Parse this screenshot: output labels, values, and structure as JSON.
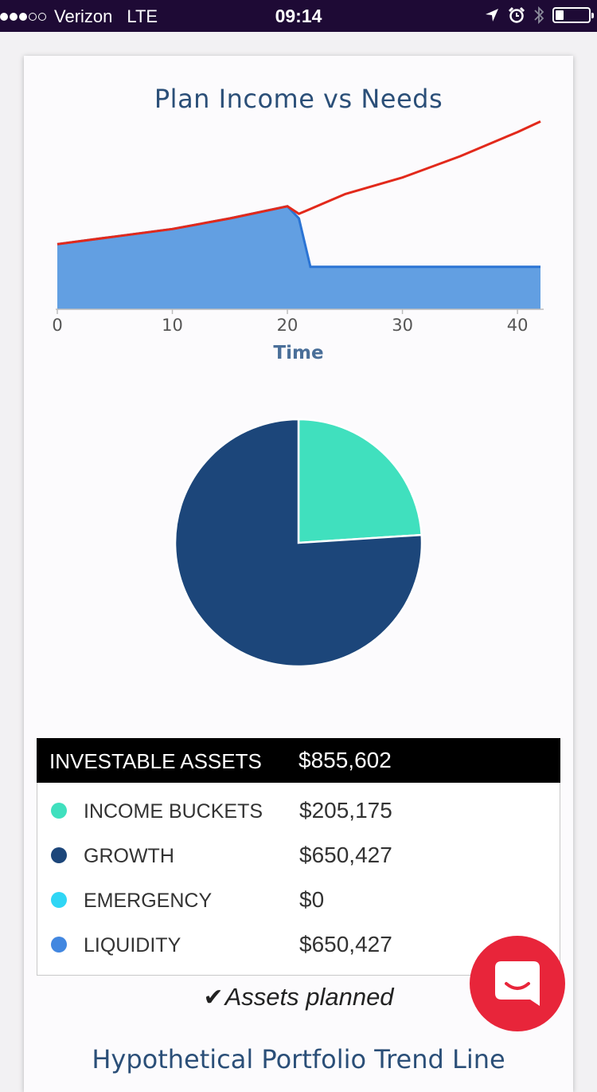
{
  "status_bar": {
    "carrier": "Verizon",
    "network": "LTE",
    "time": "09:14",
    "signal_bars_filled": 3,
    "signal_bars_total": 5,
    "battery_level": 0.25
  },
  "chart": {
    "title": "Plan Income vs Needs",
    "chart_data": {
      "type": "area",
      "xlabel": "Time",
      "xlim": [
        0,
        42
      ],
      "x_ticks": [
        "0",
        "10",
        "20",
        "30",
        "40"
      ],
      "series": [
        {
          "color": "#e2291b",
          "x": [
            0,
            5,
            10,
            15,
            20,
            21,
            25,
            30,
            35,
            40,
            42
          ],
          "values": [
            43,
            48,
            53,
            60,
            68,
            63,
            76,
            87,
            101,
            117,
            124
          ]
        },
        {
          "color": "#5a9ae0",
          "x": [
            0,
            5,
            10,
            15,
            20,
            21,
            22,
            30,
            42
          ],
          "values": [
            43,
            48,
            53,
            60,
            68,
            60,
            28,
            28,
            28
          ]
        }
      ]
    }
  },
  "pie": {
    "chart_data": {
      "type": "pie",
      "slices": [
        {
          "label": "INCOME BUCKETS",
          "value": 205175,
          "color": "#40e0be"
        },
        {
          "label": "GROWTH",
          "value": 650427,
          "color": "#1c467a"
        }
      ]
    }
  },
  "assets": {
    "header_label": "INVESTABLE ASSETS",
    "header_value": "$855,602",
    "rows": [
      {
        "label": "INCOME BUCKETS",
        "value": "$205,175",
        "color": "#40e0be"
      },
      {
        "label": "GROWTH",
        "value": "$650,427",
        "color": "#1c467a"
      },
      {
        "label": "EMERGENCY",
        "value": "$0",
        "color": "#2fd6f5"
      },
      {
        "label": "LIQUIDITY",
        "value": "$650,427",
        "color": "#4287e0"
      }
    ]
  },
  "planned_label": "Assets planned",
  "next_section_title": "Hypothetical Portfolio Trend Line",
  "icons": {
    "location": "location-arrow-icon",
    "alarm": "alarm-clock-icon",
    "bluetooth": "bluetooth-icon",
    "battery": "battery-icon",
    "check": "checkmark-icon",
    "chat": "chat-bubble-icon"
  }
}
